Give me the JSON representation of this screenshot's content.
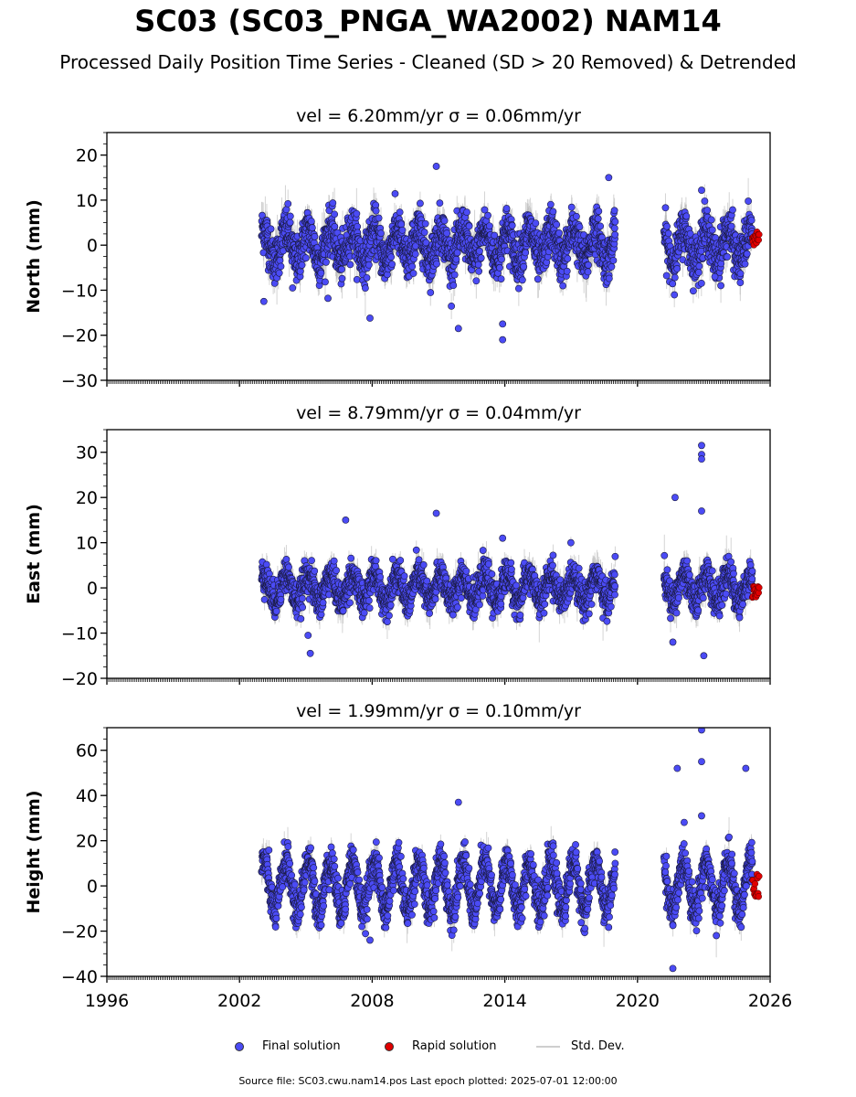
{
  "title": "SC03 (SC03_PNGA_WA2002) NAM14",
  "subtitle": "Processed Daily Position Time Series - Cleaned (SD > 20 Removed) & Detrended",
  "legend": {
    "final": "Final solution",
    "rapid": "Rapid solution",
    "std": "Std. Dev."
  },
  "footer": "Source file: SC03.cwu.nam14.pos  Last epoch plotted: 2025-07-01 12:00:00",
  "colors": {
    "final": "#4b4bf5",
    "rapid": "#e00000",
    "std": "#b0b0b0",
    "frame": "#000000"
  },
  "chart_data": [
    {
      "type": "scatter",
      "title": "vel = 6.20mm/yr   σ = 0.06mm/yr",
      "ylabel": "North (mm)",
      "xlim": [
        1996,
        2026
      ],
      "ylim": [
        -30,
        25
      ],
      "yticks": [
        -30,
        -20,
        -10,
        0,
        10,
        20
      ],
      "xticks": [
        1996,
        2002,
        2008,
        2014,
        2020,
        2026
      ],
      "x_tick_labels_visible": false,
      "data_span": [
        2003.0,
        2025.5
      ],
      "gap": [
        2019.0,
        2021.2
      ],
      "seasonal_amplitude": 3.5,
      "noise": 2.5,
      "outliers": [
        [
          2003.1,
          -12.5
        ],
        [
          2004.4,
          -9.5
        ],
        [
          2006.0,
          -11.8
        ],
        [
          2007.9,
          -16.2
        ],
        [
          2010.9,
          17.5
        ],
        [
          2011.9,
          -18.5
        ],
        [
          2013.9,
          -21.0
        ],
        [
          2013.9,
          -17.5
        ],
        [
          2018.7,
          15.0
        ],
        [
          2022.9,
          12.2
        ],
        [
          2023.5,
          -7.0
        ]
      ],
      "rapid": {
        "x_start": 2025.2,
        "x_end": 2025.5,
        "y_min": -0.5,
        "y_max": 3.0
      }
    },
    {
      "type": "scatter",
      "title": "vel = 8.79mm/yr   σ = 0.04mm/yr",
      "ylabel": "East (mm)",
      "xlim": [
        1996,
        2026
      ],
      "ylim": [
        -20,
        35
      ],
      "yticks": [
        -20,
        -10,
        0,
        10,
        20,
        30
      ],
      "xticks": [
        1996,
        2002,
        2008,
        2014,
        2020,
        2026
      ],
      "x_tick_labels_visible": false,
      "data_span": [
        2003.0,
        2025.5
      ],
      "gap": [
        2019.0,
        2021.2
      ],
      "seasonal_amplitude": 3.0,
      "noise": 1.8,
      "outliers": [
        [
          2005.1,
          -10.5
        ],
        [
          2005.2,
          -14.5
        ],
        [
          2006.8,
          15.0
        ],
        [
          2010.9,
          16.5
        ],
        [
          2013.9,
          11.0
        ],
        [
          2021.7,
          20.0
        ],
        [
          2022.9,
          31.5
        ],
        [
          2022.9,
          29.5
        ],
        [
          2022.9,
          28.5
        ],
        [
          2022.9,
          17.0
        ],
        [
          2023.0,
          -15.0
        ],
        [
          2021.6,
          -12.0
        ]
      ],
      "rapid": {
        "x_start": 2025.2,
        "x_end": 2025.5,
        "y_min": -2.5,
        "y_max": 0.5
      }
    },
    {
      "type": "scatter",
      "title": "vel = 1.99mm/yr   σ = 0.10mm/yr",
      "ylabel": "Height (mm)",
      "xlim": [
        1996,
        2026
      ],
      "ylim": [
        -40,
        70
      ],
      "yticks": [
        -40,
        -20,
        0,
        20,
        40,
        60
      ],
      "xticks": [
        1996,
        2002,
        2008,
        2014,
        2020,
        2026
      ],
      "x_tick_labels_visible": true,
      "data_span": [
        2003.0,
        2025.5
      ],
      "gap": [
        2019.0,
        2021.2
      ],
      "seasonal_amplitude": 11.0,
      "noise": 4.0,
      "outliers": [
        [
          2021.6,
          -36.5
        ],
        [
          2021.8,
          52.0
        ],
        [
          2022.9,
          69.0
        ],
        [
          2022.9,
          55.0
        ],
        [
          2022.9,
          31.0
        ],
        [
          2024.9,
          52.0
        ],
        [
          2011.9,
          37.0
        ],
        [
          2007.9,
          -24.0
        ]
      ],
      "rapid": {
        "x_start": 2025.2,
        "x_end": 2025.5,
        "y_min": -5.5,
        "y_max": 6.0
      }
    }
  ]
}
